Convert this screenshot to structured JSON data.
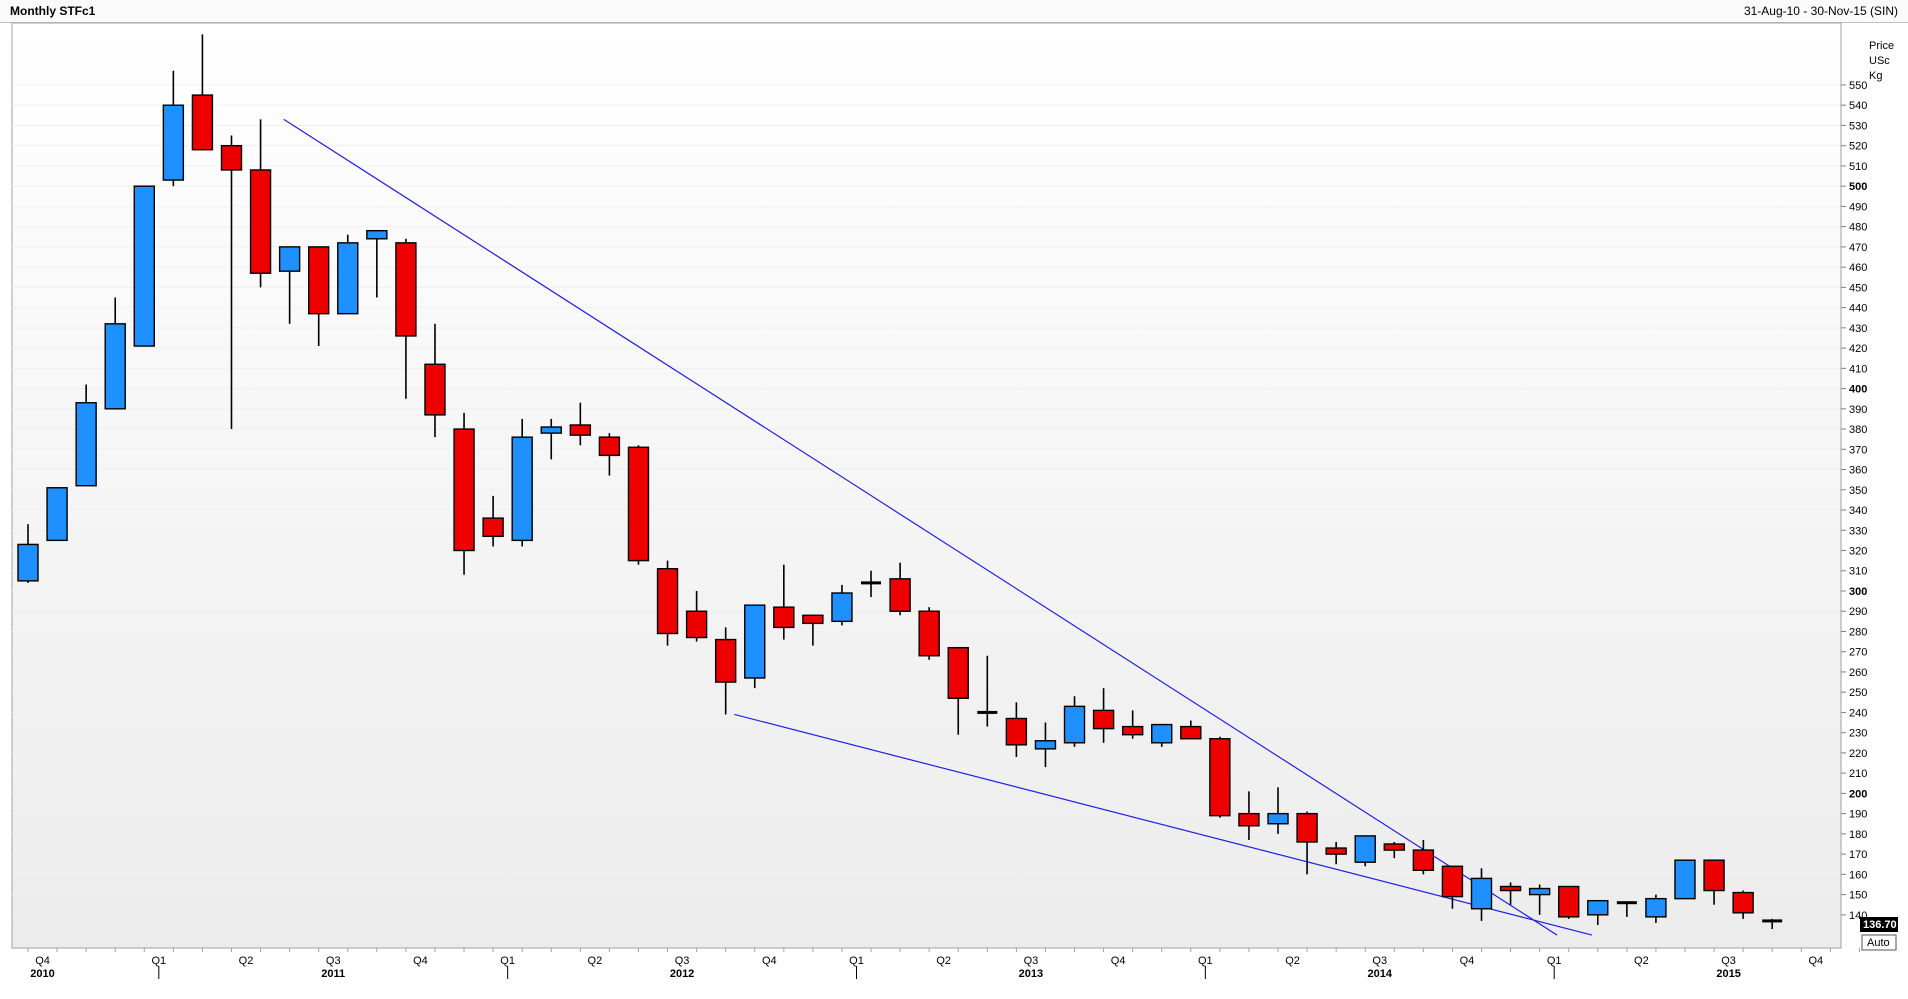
{
  "header": {
    "title": "Monthly STFc1",
    "date_range": "31-Aug-10 - 30-Nov-15 (SIN)"
  },
  "axis": {
    "price_unit_lines": [
      "Price",
      "USc",
      "Kg"
    ],
    "last_price": "136.70",
    "scale_mode": "Auto"
  },
  "colors": {
    "up": "#1e90ff",
    "down": "#ee0000",
    "trendline": "#2020e0",
    "last_price_bg": "#000000",
    "plot_bg_top": "#ffffff",
    "plot_bg_bottom": "#ececec"
  },
  "chart_data": {
    "type": "candlestick",
    "title": "Monthly STFc1",
    "ylabel": "Price USc Kg",
    "ylim": [
      130,
      560
    ],
    "y_ticks": [
      140,
      150,
      160,
      170,
      180,
      190,
      200,
      210,
      220,
      230,
      240,
      250,
      260,
      270,
      280,
      290,
      300,
      310,
      320,
      330,
      340,
      350,
      360,
      370,
      380,
      390,
      400,
      410,
      420,
      430,
      440,
      450,
      460,
      470,
      480,
      490,
      500,
      510,
      520,
      530,
      540,
      550
    ],
    "bold_ticks": [
      200,
      300,
      400,
      500
    ],
    "x_axis": {
      "quarters": [
        {
          "label": "Q4",
          "month": 1,
          "year": "2010"
        },
        {
          "label": "Q1",
          "month": 5
        },
        {
          "label": "Q2",
          "month": 8
        },
        {
          "label": "Q3",
          "month": 11,
          "year": "2011"
        },
        {
          "label": "Q4",
          "month": 14
        },
        {
          "label": "Q1",
          "month": 17
        },
        {
          "label": "Q2",
          "month": 20
        },
        {
          "label": "Q3",
          "month": 23,
          "year": "2012"
        },
        {
          "label": "Q4",
          "month": 26
        },
        {
          "label": "Q1",
          "month": 29
        },
        {
          "label": "Q2",
          "month": 32
        },
        {
          "label": "Q3",
          "month": 35,
          "year": "2013"
        },
        {
          "label": "Q4",
          "month": 38
        },
        {
          "label": "Q1",
          "month": 41
        },
        {
          "label": "Q2",
          "month": 44
        },
        {
          "label": "Q3",
          "month": 47,
          "year": "2014"
        },
        {
          "label": "Q4",
          "month": 50
        },
        {
          "label": "Q1",
          "month": 53
        },
        {
          "label": "Q2",
          "month": 56
        },
        {
          "label": "Q3",
          "month": 59,
          "year": "2015"
        },
        {
          "label": "Q4",
          "month": 62
        }
      ]
    },
    "candles": [
      {
        "o": 305,
        "h": 333,
        "l": 304,
        "c": 323
      },
      {
        "o": 325,
        "h": 351,
        "l": 325,
        "c": 351
      },
      {
        "o": 352,
        "h": 402,
        "l": 352,
        "c": 393
      },
      {
        "o": 390,
        "h": 445,
        "l": 390,
        "c": 432
      },
      {
        "o": 421,
        "h": 500,
        "l": 421,
        "c": 500
      },
      {
        "o": 503,
        "h": 557,
        "l": 500,
        "c": 540
      },
      {
        "o": 545,
        "h": 575,
        "l": 518,
        "c": 518
      },
      {
        "o": 520,
        "h": 525,
        "l": 380,
        "c": 508
      },
      {
        "o": 508,
        "h": 533,
        "l": 450,
        "c": 457
      },
      {
        "o": 458,
        "h": 470,
        "l": 432,
        "c": 470
      },
      {
        "o": 470,
        "h": 470,
        "l": 421,
        "c": 437
      },
      {
        "o": 437,
        "h": 476,
        "l": 437,
        "c": 472
      },
      {
        "o": 474,
        "h": 478,
        "l": 445,
        "c": 478
      },
      {
        "o": 472,
        "h": 474,
        "l": 395,
        "c": 426
      },
      {
        "o": 412,
        "h": 432,
        "l": 376,
        "c": 387
      },
      {
        "o": 380,
        "h": 388,
        "l": 308,
        "c": 320
      },
      {
        "o": 336,
        "h": 347,
        "l": 322,
        "c": 327
      },
      {
        "o": 325,
        "h": 385,
        "l": 322,
        "c": 376
      },
      {
        "o": 378,
        "h": 385,
        "l": 365,
        "c": 381
      },
      {
        "o": 382,
        "h": 393,
        "l": 372,
        "c": 377
      },
      {
        "o": 376,
        "h": 378,
        "l": 357,
        "c": 367
      },
      {
        "o": 371,
        "h": 372,
        "l": 313,
        "c": 315
      },
      {
        "o": 311,
        "h": 315,
        "l": 273,
        "c": 279
      },
      {
        "o": 290,
        "h": 300,
        "l": 275,
        "c": 277
      },
      {
        "o": 276,
        "h": 282,
        "l": 239,
        "c": 255
      },
      {
        "o": 257,
        "h": 293,
        "l": 252,
        "c": 293
      },
      {
        "o": 292,
        "h": 313,
        "l": 276,
        "c": 282
      },
      {
        "o": 288,
        "h": 288,
        "l": 273,
        "c": 284
      },
      {
        "o": 285,
        "h": 303,
        "l": 283,
        "c": 299
      },
      {
        "o": 304,
        "h": 310,
        "l": 297,
        "c": 304
      },
      {
        "o": 306,
        "h": 314,
        "l": 288,
        "c": 290
      },
      {
        "o": 290,
        "h": 292,
        "l": 266,
        "c": 268
      },
      {
        "o": 272,
        "h": 272,
        "l": 229,
        "c": 247
      },
      {
        "o": 240,
        "h": 268,
        "l": 233,
        "c": 240
      },
      {
        "o": 237,
        "h": 245,
        "l": 218,
        "c": 224
      },
      {
        "o": 222,
        "h": 235,
        "l": 213,
        "c": 226
      },
      {
        "o": 225,
        "h": 248,
        "l": 223,
        "c": 243
      },
      {
        "o": 241,
        "h": 252,
        "l": 225,
        "c": 232
      },
      {
        "o": 233,
        "h": 241,
        "l": 227,
        "c": 229
      },
      {
        "o": 225,
        "h": 234,
        "l": 223,
        "c": 234
      },
      {
        "o": 233,
        "h": 236,
        "l": 227,
        "c": 227
      },
      {
        "o": 227,
        "h": 228,
        "l": 188,
        "c": 189
      },
      {
        "o": 190,
        "h": 201,
        "l": 177,
        "c": 184
      },
      {
        "o": 185,
        "h": 203,
        "l": 180,
        "c": 190
      },
      {
        "o": 190,
        "h": 191,
        "l": 160,
        "c": 176
      },
      {
        "o": 173,
        "h": 176,
        "l": 165,
        "c": 170
      },
      {
        "o": 166,
        "h": 179,
        "l": 164,
        "c": 179
      },
      {
        "o": 175,
        "h": 176,
        "l": 168,
        "c": 172
      },
      {
        "o": 172,
        "h": 177,
        "l": 160,
        "c": 162
      },
      {
        "o": 164,
        "h": 164,
        "l": 143,
        "c": 149
      },
      {
        "o": 143,
        "h": 163,
        "l": 137,
        "c": 158
      },
      {
        "o": 154,
        "h": 156,
        "l": 145,
        "c": 152
      },
      {
        "o": 150,
        "h": 155,
        "l": 140,
        "c": 153
      },
      {
        "o": 154,
        "h": 154,
        "l": 138,
        "c": 139
      },
      {
        "o": 140,
        "h": 147,
        "l": 135,
        "c": 147
      },
      {
        "o": 146,
        "h": 146,
        "l": 139,
        "c": 146
      },
      {
        "o": 139,
        "h": 150,
        "l": 136,
        "c": 148
      },
      {
        "o": 148,
        "h": 167,
        "l": 148,
        "c": 167
      },
      {
        "o": 167,
        "h": 167,
        "l": 145,
        "c": 152
      },
      {
        "o": 151,
        "h": 152,
        "l": 138,
        "c": 141
      },
      {
        "o": 137,
        "h": 138,
        "l": 133,
        "c": 136.7
      }
    ],
    "trendlines": [
      {
        "from": {
          "month": 8.8,
          "price": 533
        },
        "to": {
          "month": 52.6,
          "price": 130
        }
      },
      {
        "from": {
          "month": 24.3,
          "price": 239
        },
        "to": {
          "month": 53.8,
          "price": 130
        }
      }
    ]
  }
}
